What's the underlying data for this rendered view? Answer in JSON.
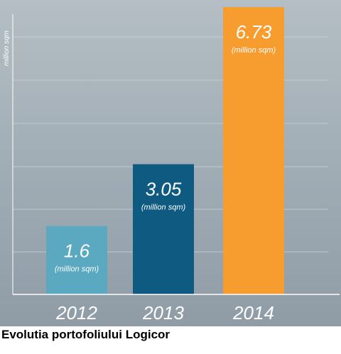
{
  "caption": "Evolutia portofoliului Logicor",
  "colors": {
    "background_top": "#b4bec4",
    "background_bottom": "#8f9ca6",
    "gridline": "#c9d1d6",
    "axis": "#ffffff",
    "text": "#ffffff"
  },
  "chart_data": {
    "type": "bar",
    "title": "",
    "xlabel": "",
    "ylabel": "million sqm",
    "categories": [
      "2012",
      "2013",
      "2014"
    ],
    "values": [
      1.6,
      3.05,
      6.73
    ],
    "value_labels": [
      "1.6",
      "3.05",
      "6.73"
    ],
    "unit_label": "(million sqm)",
    "bar_colors": [
      "#5aa9c0",
      "#0f5a80",
      "#f79d30"
    ],
    "ylim": [
      0,
      6.73
    ],
    "grid": true,
    "legend": "none"
  }
}
